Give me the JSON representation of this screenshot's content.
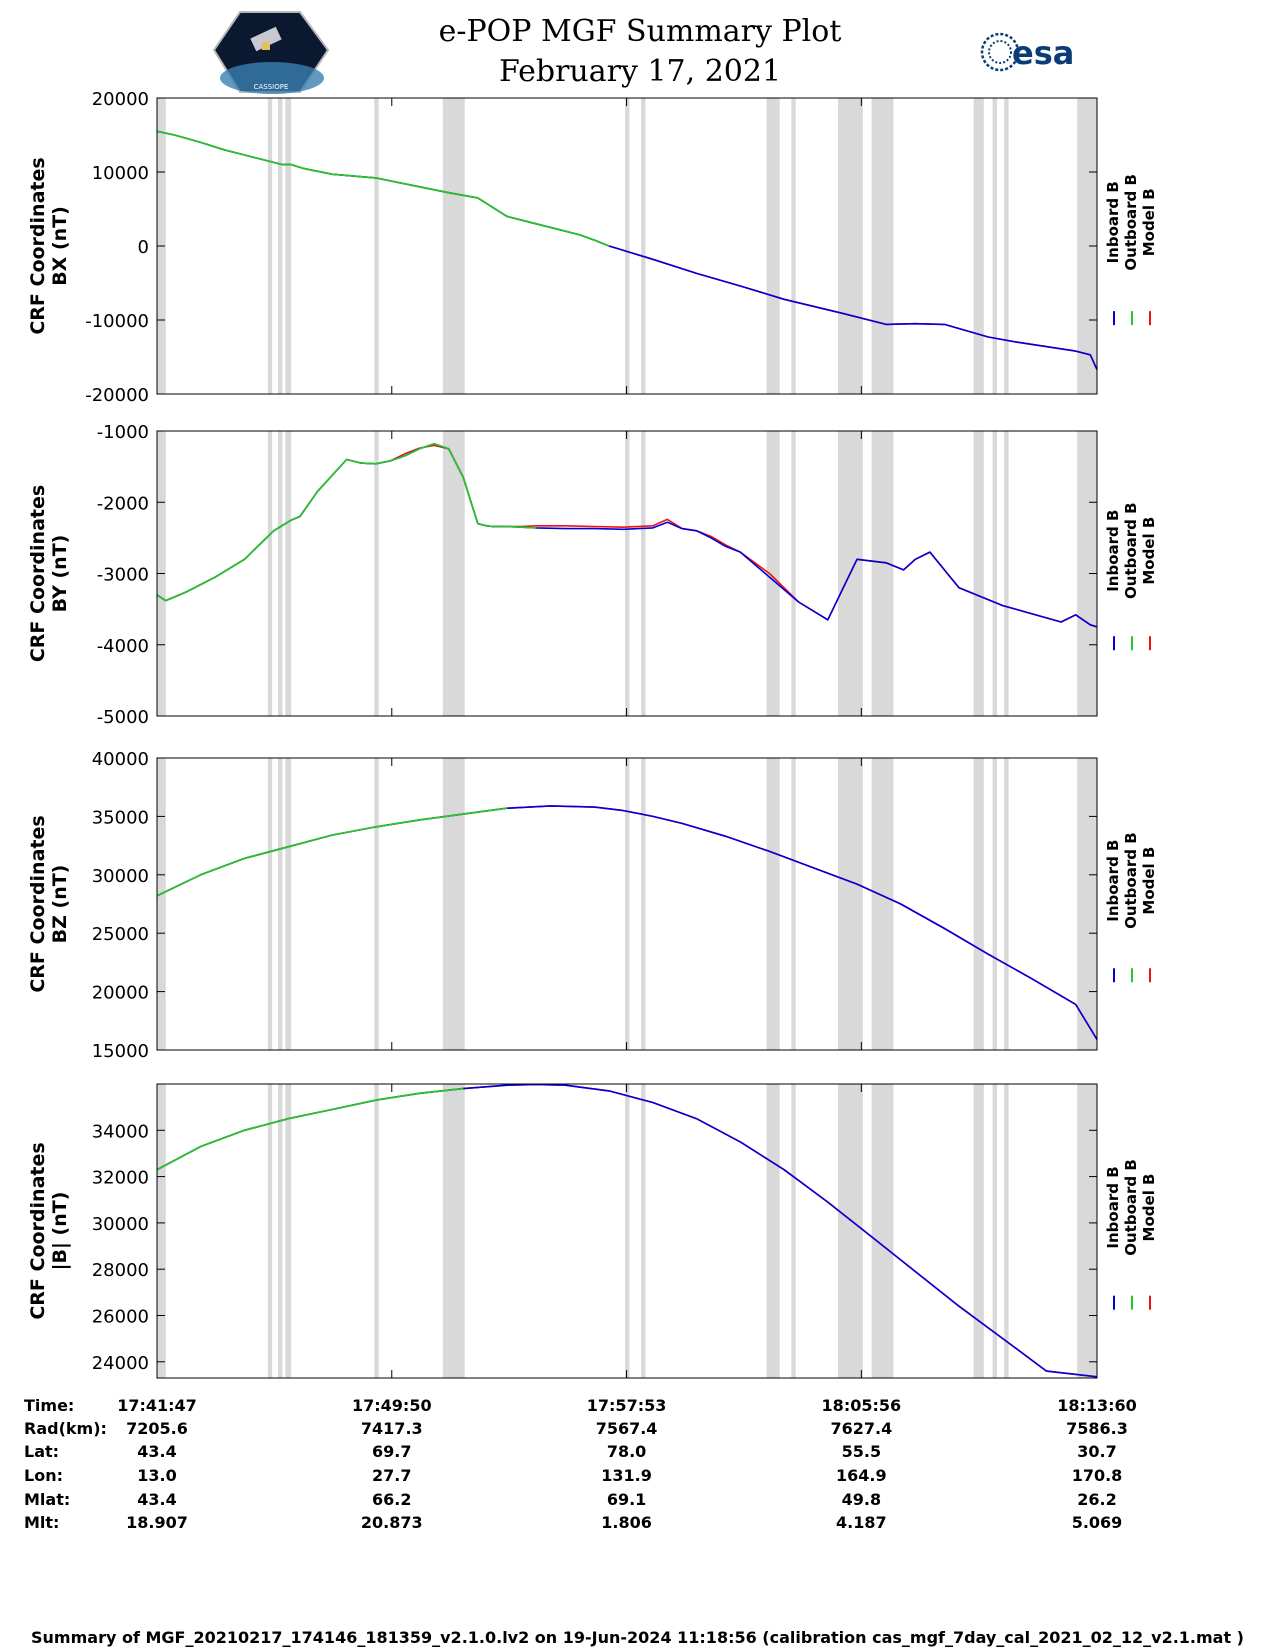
{
  "title": "e-POP MGF Summary Plot",
  "date": "February 17, 2021",
  "esa_logo_text": "esa",
  "cassiope_logo_text": "CASSIOPE",
  "colors": {
    "inboard": "#0000dd",
    "outboard": "#22cc22",
    "model": "#ee1111",
    "shade": "#d9d9d9"
  },
  "chart_data": [
    {
      "type": "line",
      "id": "bx",
      "ylabel_line1": "CRF Coordinates",
      "ylabel_line2": "BX (nT)",
      "ylim": [
        -20000,
        20000
      ],
      "yticks": [
        -20000,
        -10000,
        0,
        10000,
        20000
      ],
      "legend": [
        "Inboard B",
        "Outboard B",
        "Model B"
      ],
      "series": [
        {
          "name": "Model B",
          "color_key": "model",
          "x": [
            0,
            0.6,
            1.5,
            2.3,
            2.8,
            3.8,
            4.3,
            4.6,
            5.0,
            6.0,
            7.5,
            8.0,
            9.0,
            10.0,
            11.0,
            12.0,
            13.0,
            14.5,
            15.0,
            15.5,
            17.0,
            18.5,
            20.0,
            21.5,
            23.5,
            25.0,
            26.0,
            27.0,
            28.5,
            29.5,
            31.5,
            32.0,
            32.23
          ],
          "y": [
            15500,
            15000,
            14000,
            13000,
            12500,
            11500,
            11000,
            11000,
            10500,
            9700,
            9200,
            8800,
            8000,
            7200,
            6500,
            4000,
            3000,
            1500,
            800,
            0,
            -1800,
            -3700,
            -5400,
            -7200,
            -9100,
            -10600,
            -10500,
            -10600,
            -12300,
            -13000,
            -14200,
            -14700,
            -16700
          ]
        },
        {
          "name": "Inboard B",
          "color_key": "inboard",
          "x": [
            0,
            0.6,
            1.5,
            2.3,
            2.8,
            3.8,
            4.3,
            4.6,
            5.0,
            6.0,
            7.5,
            8.0,
            9.0,
            10.0,
            11.0,
            12.0,
            13.0,
            14.5,
            15.0,
            15.5,
            17.0,
            18.5,
            20.0,
            21.5,
            23.5,
            25.0,
            26.0,
            27.0,
            28.5,
            29.5,
            31.5,
            32.0,
            32.23
          ],
          "y": [
            15500,
            15000,
            14000,
            13000,
            12500,
            11500,
            11000,
            11000,
            10500,
            9700,
            9200,
            8800,
            8000,
            7200,
            6500,
            4000,
            3000,
            1500,
            800,
            0,
            -1800,
            -3700,
            -5400,
            -7200,
            -9100,
            -10600,
            -10500,
            -10600,
            -12300,
            -13000,
            -14200,
            -14700,
            -16700
          ]
        },
        {
          "name": "Outboard B",
          "color_key": "outboard",
          "x": [
            0,
            0.6,
            1.5,
            2.3,
            2.8,
            3.8,
            4.3,
            4.6,
            5.0,
            6.0,
            7.5,
            8.0,
            9.0,
            10.0,
            11.0,
            12.0,
            13.0,
            14.5,
            15.0,
            15.5
          ],
          "y": [
            15500,
            15000,
            14000,
            13000,
            12500,
            11500,
            11000,
            11000,
            10500,
            9700,
            9200,
            8800,
            8000,
            7200,
            6500,
            4000,
            3000,
            1500,
            800,
            0
          ]
        }
      ]
    },
    {
      "type": "line",
      "id": "by",
      "ylabel_line1": "CRF Coordinates",
      "ylabel_line2": "BY (nT)",
      "ylim": [
        -5000,
        -1000
      ],
      "yticks": [
        -5000,
        -4000,
        -3000,
        -2000,
        -1000
      ],
      "legend": [
        "Inboard B",
        "Outboard B",
        "Model B"
      ],
      "series": [
        {
          "name": "Model B",
          "color_key": "model",
          "x": [
            0,
            0.3,
            1.0,
            2.0,
            3.0,
            4.0,
            4.6,
            4.9,
            5.5,
            6.5,
            7.0,
            7.5,
            8.0,
            8.5,
            9.0,
            9.5,
            10.0,
            10.5,
            11.0,
            11.3,
            11.5,
            11.8,
            12.0,
            12.5,
            13.0,
            14.0,
            15.0,
            16.0,
            17.0,
            17.5,
            18.0,
            18.5,
            19.0,
            19.5,
            20.0,
            21.0,
            22.0,
            23.0,
            24.0,
            25.0,
            25.6,
            26.0,
            26.5,
            27.5,
            29.0,
            31.0,
            31.5,
            32.0,
            32.23
          ],
          "y": [
            -3300,
            -3380,
            -3260,
            -3050,
            -2800,
            -2400,
            -2250,
            -2200,
            -1850,
            -1400,
            -1450,
            -1460,
            -1420,
            -1320,
            -1240,
            -1200,
            -1250,
            -1650,
            -2300,
            -2330,
            -2340,
            -2340,
            -2340,
            -2340,
            -2330,
            -2330,
            -2340,
            -2350,
            -2330,
            -2240,
            -2370,
            -2400,
            -2480,
            -2600,
            -2700,
            -3000,
            -3400,
            -3650,
            -2800,
            -2850,
            -2950,
            -2800,
            -2700,
            -3200,
            -3450,
            -3680,
            -3580,
            -3720,
            -3750
          ]
        },
        {
          "name": "Inboard B",
          "color_key": "inboard",
          "x": [
            0,
            0.3,
            1.0,
            2.0,
            3.0,
            4.0,
            4.6,
            4.9,
            5.5,
            6.5,
            7.0,
            7.5,
            8.0,
            8.5,
            9.0,
            9.5,
            10.0,
            10.5,
            11.0,
            11.3,
            11.5,
            11.8,
            12.0,
            12.5,
            13.0,
            14.0,
            15.0,
            16.0,
            17.0,
            17.5,
            18.0,
            18.5,
            19.0,
            19.5,
            20.0,
            21.0,
            22.0,
            23.0,
            24.0,
            25.0,
            25.6,
            26.0,
            26.5,
            27.5,
            29.0,
            31.0,
            31.5,
            32.0,
            32.23
          ],
          "y": [
            -3300,
            -3380,
            -3260,
            -3050,
            -2800,
            -2400,
            -2250,
            -2200,
            -1850,
            -1400,
            -1450,
            -1460,
            -1420,
            -1350,
            -1250,
            -1180,
            -1250,
            -1650,
            -2300,
            -2330,
            -2340,
            -2340,
            -2340,
            -2350,
            -2360,
            -2370,
            -2370,
            -2380,
            -2360,
            -2280,
            -2370,
            -2400,
            -2500,
            -2620,
            -2700,
            -3050,
            -3400,
            -3650,
            -2800,
            -2850,
            -2950,
            -2800,
            -2700,
            -3200,
            -3450,
            -3680,
            -3580,
            -3720,
            -3750
          ]
        },
        {
          "name": "Outboard B",
          "color_key": "outboard",
          "x": [
            0,
            0.3,
            1.0,
            2.0,
            3.0,
            4.0,
            4.6,
            4.9,
            5.5,
            6.5,
            7.0,
            7.5,
            8.0,
            8.5,
            9.0,
            9.5,
            10.0,
            10.5,
            11.0,
            11.3,
            11.5,
            11.8,
            12.0,
            12.5,
            13.0
          ],
          "y": [
            -3300,
            -3380,
            -3260,
            -3050,
            -2800,
            -2400,
            -2250,
            -2200,
            -1850,
            -1400,
            -1450,
            -1460,
            -1420,
            -1350,
            -1250,
            -1180,
            -1250,
            -1650,
            -2300,
            -2330,
            -2340,
            -2340,
            -2340,
            -2350,
            -2360
          ]
        }
      ]
    },
    {
      "type": "line",
      "id": "bz",
      "ylabel_line1": "CRF Coordinates",
      "ylabel_line2": "BZ (nT)",
      "ylim": [
        15000,
        40000
      ],
      "yticks": [
        15000,
        20000,
        25000,
        30000,
        35000,
        40000
      ],
      "legend": [
        "Inboard B",
        "Outboard B",
        "Model B"
      ],
      "series": [
        {
          "name": "Model B",
          "color_key": "model",
          "x": [
            0,
            1.5,
            3.0,
            4.5,
            6.0,
            7.5,
            9.0,
            10.5,
            12.0,
            13.5,
            15.0,
            16.0,
            17.0,
            18.0,
            19.5,
            21.0,
            22.5,
            24.0,
            25.5,
            27.0,
            28.5,
            30.0,
            31.5,
            32.23
          ],
          "y": [
            28200,
            30000,
            31400,
            32400,
            33400,
            34100,
            34700,
            35200,
            35700,
            35900,
            35800,
            35500,
            35000,
            34400,
            33300,
            32000,
            30600,
            29200,
            27500,
            25400,
            23200,
            21100,
            18900,
            15900
          ]
        },
        {
          "name": "Inboard B",
          "color_key": "inboard",
          "x": [
            0,
            1.5,
            3.0,
            4.5,
            6.0,
            7.5,
            9.0,
            10.5,
            12.0,
            13.5,
            15.0,
            16.0,
            17.0,
            18.0,
            19.5,
            21.0,
            22.5,
            24.0,
            25.5,
            27.0,
            28.5,
            30.0,
            31.5,
            32.23
          ],
          "y": [
            28200,
            30000,
            31400,
            32400,
            33400,
            34100,
            34700,
            35200,
            35700,
            35900,
            35800,
            35500,
            35000,
            34400,
            33300,
            32000,
            30600,
            29200,
            27500,
            25400,
            23200,
            21100,
            18900,
            15900
          ]
        },
        {
          "name": "Outboard B",
          "color_key": "outboard",
          "x": [
            0,
            1.5,
            3.0,
            4.5,
            6.0,
            7.5,
            9.0,
            10.5,
            12.0
          ],
          "y": [
            28200,
            30000,
            31400,
            32400,
            33400,
            34100,
            34700,
            35200,
            35700
          ]
        }
      ]
    },
    {
      "type": "line",
      "id": "bmag",
      "ylabel_line1": "CRF Coordinates",
      "ylabel_line2": "|B| (nT)",
      "ylim": [
        23300,
        36000
      ],
      "yticks": [
        24000,
        26000,
        28000,
        30000,
        32000,
        34000
      ],
      "legend": [
        "Inboard B",
        "Outboard B",
        "Model B"
      ],
      "series": [
        {
          "name": "Model B",
          "color_key": "model",
          "x": [
            0,
            1.5,
            3.0,
            4.5,
            6.0,
            7.5,
            9.0,
            10.5,
            12.0,
            13.0,
            14.0,
            15.5,
            17.0,
            18.5,
            20.0,
            21.5,
            23.0,
            24.5,
            26.0,
            27.5,
            29.0,
            30.5,
            32.23
          ],
          "y": [
            32300,
            33300,
            34000,
            34500,
            34900,
            35300,
            35600,
            35800,
            35950,
            35980,
            35950,
            35700,
            35200,
            34500,
            33500,
            32300,
            30900,
            29400,
            27900,
            26400,
            25000,
            23600,
            23350
          ]
        },
        {
          "name": "Inboard B",
          "color_key": "inboard",
          "x": [
            0,
            1.5,
            3.0,
            4.5,
            6.0,
            7.5,
            9.0,
            10.5,
            12.0,
            13.0,
            14.0,
            15.5,
            17.0,
            18.5,
            20.0,
            21.5,
            23.0,
            24.5,
            26.0,
            27.5,
            29.0,
            30.5,
            32.23
          ],
          "y": [
            32300,
            33300,
            34000,
            34500,
            34900,
            35300,
            35600,
            35800,
            35950,
            35980,
            35950,
            35700,
            35200,
            34500,
            33500,
            32300,
            30900,
            29400,
            27900,
            26400,
            25000,
            23600,
            23350
          ]
        },
        {
          "name": "Outboard B",
          "color_key": "outboard",
          "x": [
            0,
            1.5,
            3.0,
            4.5,
            6.0,
            7.5,
            9.0,
            10.5
          ],
          "y": [
            32300,
            33300,
            34000,
            34500,
            34900,
            35300,
            35600,
            35800
          ]
        }
      ]
    }
  ],
  "x_axis": {
    "unit": "minutes since 17:41:47",
    "xlim": [
      0,
      32.23
    ],
    "tick_positions": [
      0,
      8.05,
      16.1,
      24.15,
      32.23
    ]
  },
  "shaded_intervals": [
    [
      0,
      0.3
    ],
    [
      3.8,
      3.95
    ],
    [
      4.15,
      4.3
    ],
    [
      4.4,
      4.6
    ],
    [
      7.45,
      7.6
    ],
    [
      9.8,
      10.55
    ],
    [
      16.05,
      16.2
    ],
    [
      16.6,
      16.75
    ],
    [
      20.9,
      21.35
    ],
    [
      21.75,
      21.9
    ],
    [
      23.35,
      24.2
    ],
    [
      24.5,
      25.25
    ],
    [
      28.0,
      28.35
    ],
    [
      28.65,
      28.8
    ],
    [
      29.05,
      29.2
    ],
    [
      31.55,
      32.23
    ]
  ],
  "info_table": {
    "labels": [
      "Time:",
      "Rad(km):",
      "Lat:",
      "Lon:",
      "Mlat:",
      "Mlt:"
    ],
    "columns": [
      [
        "17:41:47",
        "7205.6",
        "43.4",
        "13.0",
        "43.4",
        "18.907"
      ],
      [
        "17:49:50",
        "7417.3",
        "69.7",
        "27.7",
        "66.2",
        "20.873"
      ],
      [
        "17:57:53",
        "7567.4",
        "78.0",
        "131.9",
        "69.1",
        "1.806"
      ],
      [
        "18:05:56",
        "7627.4",
        "55.5",
        "164.9",
        "49.8",
        "4.187"
      ],
      [
        "18:13:60",
        "7586.3",
        "30.7",
        "170.8",
        "26.2",
        "5.069"
      ]
    ]
  },
  "footer": "Summary of MGF_20210217_174146_181359_v2.1.0.lv2 on 19-Jun-2024 11:18:56 (calibration cas_mgf_7day_cal_2021_02_12_v2.1.mat )"
}
